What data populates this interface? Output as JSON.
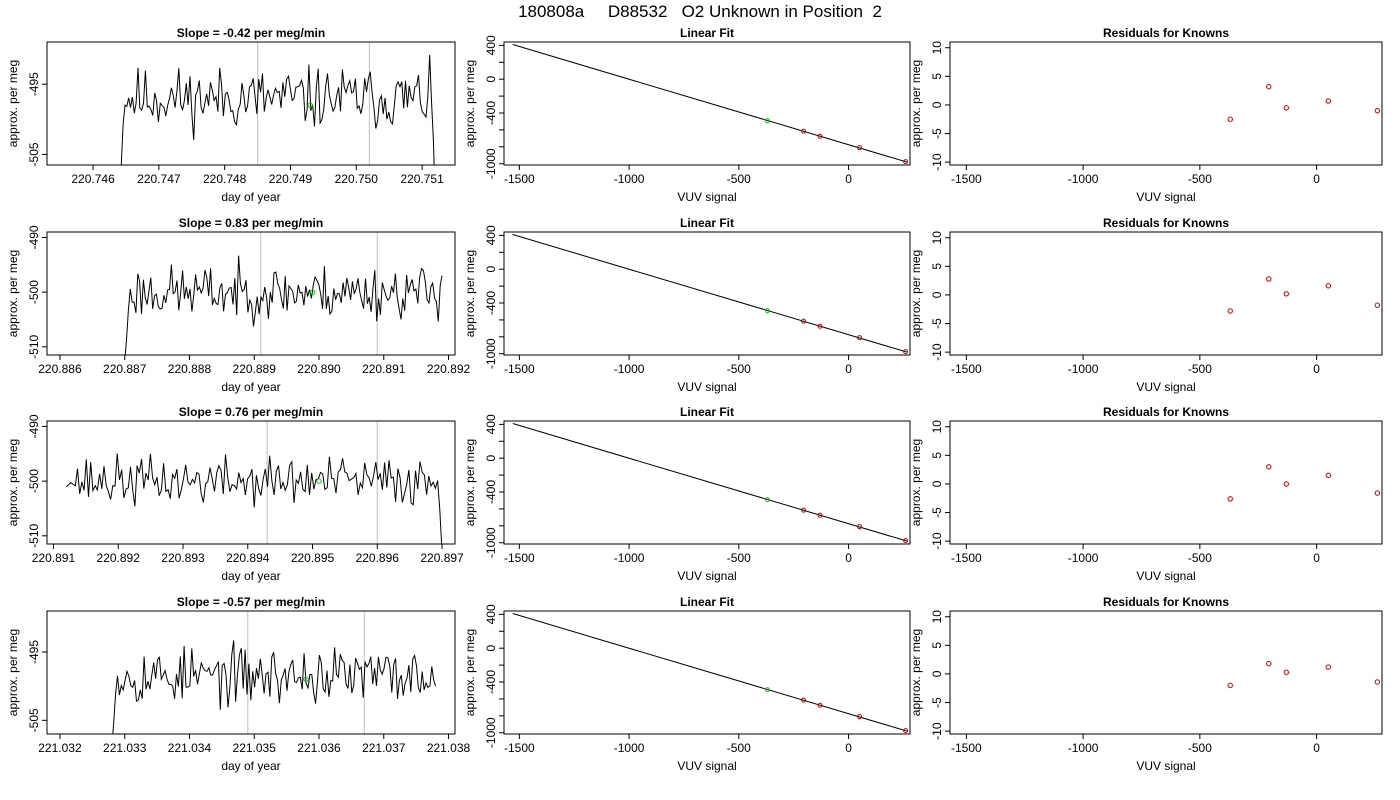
{
  "figure_title": "180808a     D88532   O2 Unknown in Position  2",
  "colors": {
    "trace": "#000000",
    "unknown_point": "#00cc00",
    "known_point": "#cc0000",
    "marker_line": "#c8c8c8",
    "fit_line": "#000000"
  },
  "chart_data": [
    {
      "row": 1,
      "type": "line",
      "title": "Slope =  -0.42  per meg/min",
      "xlabel": "day of year",
      "ylabel": "approx. per meg",
      "xlim": [
        220.7453,
        220.7515
      ],
      "ylim": [
        -506.5,
        -489
      ],
      "xticks": [
        "220.746",
        "220.747",
        "220.748",
        "220.749",
        "220.750",
        "220.751"
      ],
      "yticks": [
        "-495",
        "-505"
      ],
      "vlines": [
        220.7485,
        220.7502
      ],
      "trace_start": 220.7464,
      "trace_end": 220.7512,
      "baseline": -497,
      "wiggle": 2.7,
      "seed": 11,
      "start_value": -512,
      "end_value": -512,
      "unknown_point": {
        "x": 220.7493,
        "y": -498
      }
    },
    {
      "row": 1,
      "type": "scatter",
      "title": "Linear Fit",
      "xlabel": "VUV signal",
      "ylabel": "approx. per meg",
      "xlim": [
        -1570,
        280
      ],
      "ylim": [
        -1015,
        440
      ],
      "xticks": [
        "-1500",
        "-1000",
        "-500",
        "0"
      ],
      "yticks": [
        "400",
        "0",
        "-400",
        "-1000"
      ],
      "fit_line": {
        "x": [
          -1530,
          265
        ],
        "y": [
          410,
          -980
        ]
      },
      "unknown_point": {
        "x": -370,
        "y": -490
      },
      "known_points": {
        "x": [
          -205,
          -130,
          50,
          260
        ],
        "y": [
          -615,
          -675,
          -810,
          -975
        ]
      }
    },
    {
      "row": 1,
      "type": "scatter",
      "title": "Residuals for Knowns",
      "xlabel": "VUV signal",
      "ylabel": "approx. per meg",
      "xlim": [
        -1570,
        280
      ],
      "ylim": [
        -10.5,
        11
      ],
      "xticks": [
        "-1500",
        "-1000",
        "-500",
        "0"
      ],
      "yticks": [
        "10",
        "5",
        "0",
        "-5",
        "-10"
      ],
      "points": {
        "x": [
          -370,
          -205,
          -130,
          50,
          260
        ],
        "y": [
          -2.5,
          3.2,
          -0.5,
          0.7,
          -1.0
        ]
      }
    },
    {
      "row": 2,
      "type": "line",
      "title": "Slope =  0.83  per meg/min",
      "xlabel": "day of year",
      "ylabel": "approx. per meg",
      "xlim": [
        220.8858,
        220.8921
      ],
      "ylim": [
        -511.5,
        -489
      ],
      "xticks": [
        "220.886",
        "220.887",
        "220.888",
        "220.889",
        "220.890",
        "220.891",
        "220.892"
      ],
      "yticks": [
        "-490",
        "-500",
        "-510"
      ],
      "vlines": [
        220.8891,
        220.8909
      ],
      "trace_start": 220.887,
      "trace_end": 220.8919,
      "baseline": -500,
      "wiggle": 3.0,
      "seed": 23,
      "start_value": -513,
      "end_value": -497,
      "unknown_point": {
        "x": 220.8899,
        "y": -500
      }
    },
    {
      "row": 2,
      "type": "scatter",
      "title": "Linear Fit",
      "xlabel": "VUV signal",
      "ylabel": "approx. per meg",
      "xlim": [
        -1570,
        280
      ],
      "ylim": [
        -1015,
        440
      ],
      "xticks": [
        "-1500",
        "-1000",
        "-500",
        "0"
      ],
      "yticks": [
        "400",
        "0",
        "-400",
        "-1000"
      ],
      "fit_line": {
        "x": [
          -1530,
          265
        ],
        "y": [
          410,
          -980
        ]
      },
      "unknown_point": {
        "x": -370,
        "y": -490
      },
      "known_points": {
        "x": [
          -205,
          -130,
          50,
          260
        ],
        "y": [
          -615,
          -675,
          -810,
          -975
        ]
      }
    },
    {
      "row": 2,
      "type": "scatter",
      "title": "Residuals for Knowns",
      "xlabel": "VUV signal",
      "ylabel": "approx. per meg",
      "xlim": [
        -1570,
        280
      ],
      "ylim": [
        -10.5,
        11
      ],
      "xticks": [
        "-1500",
        "-1000",
        "-500",
        "0"
      ],
      "yticks": [
        "10",
        "5",
        "0",
        "-5",
        "-10"
      ],
      "points": {
        "x": [
          -370,
          -205,
          -130,
          50,
          260
        ],
        "y": [
          -2.8,
          2.8,
          0.2,
          1.6,
          -1.8
        ]
      }
    },
    {
      "row": 3,
      "type": "line",
      "title": "Slope =  0.76  per meg/min",
      "xlabel": "day of year",
      "ylabel": "approx. per meg",
      "xlim": [
        220.8909,
        220.8972
      ],
      "ylim": [
        -511.5,
        -489
      ],
      "xticks": [
        "220.891",
        "220.892",
        "220.893",
        "220.894",
        "220.895",
        "220.896",
        "220.897"
      ],
      "yticks": [
        "-490",
        "-500",
        "-510"
      ],
      "vlines": [
        220.8943,
        220.896
      ],
      "trace_start": 220.8912,
      "trace_end": 220.897,
      "baseline": -500,
      "wiggle": 2.8,
      "seed": 37,
      "start_value": -501,
      "end_value": -513,
      "unknown_point": {
        "x": 220.8951,
        "y": -500
      }
    },
    {
      "row": 3,
      "type": "scatter",
      "title": "Linear Fit",
      "xlabel": "VUV signal",
      "ylabel": "approx. per meg",
      "xlim": [
        -1570,
        280
      ],
      "ylim": [
        -1015,
        440
      ],
      "xticks": [
        "-1500",
        "-1000",
        "-500",
        "0"
      ],
      "yticks": [
        "400",
        "0",
        "-400",
        "-1000"
      ],
      "fit_line": {
        "x": [
          -1530,
          265
        ],
        "y": [
          410,
          -980
        ]
      },
      "unknown_point": {
        "x": -370,
        "y": -490
      },
      "known_points": {
        "x": [
          -205,
          -130,
          50,
          260
        ],
        "y": [
          -615,
          -675,
          -810,
          -975
        ]
      }
    },
    {
      "row": 3,
      "type": "scatter",
      "title": "Residuals for Knowns",
      "xlabel": "VUV signal",
      "ylabel": "approx. per meg",
      "xlim": [
        -1570,
        280
      ],
      "ylim": [
        -10.5,
        11
      ],
      "xticks": [
        "-1500",
        "-1000",
        "-500",
        "0"
      ],
      "yticks": [
        "10",
        "5",
        "0",
        "-5",
        "-10"
      ],
      "points": {
        "x": [
          -370,
          -205,
          -130,
          50,
          260
        ],
        "y": [
          -2.6,
          3.0,
          0.0,
          1.5,
          -1.6
        ]
      }
    },
    {
      "row": 4,
      "type": "line",
      "title": "Slope =  -0.57  per meg/min",
      "xlabel": "day of year",
      "ylabel": "approx. per meg",
      "xlim": [
        221.0318,
        221.0381
      ],
      "ylim": [
        -507,
        -489
      ],
      "xticks": [
        "221.032",
        "221.033",
        "221.034",
        "221.035",
        "221.036",
        "221.037",
        "221.038"
      ],
      "yticks": [
        "-495",
        "-505"
      ],
      "vlines": [
        221.0349,
        221.0367
      ],
      "trace_start": 221.0328,
      "trace_end": 221.0378,
      "baseline": -498.5,
      "wiggle": 2.6,
      "seed": 53,
      "start_value": -509,
      "end_value": -500,
      "unknown_point": {
        "x": 221.0358,
        "y": -499
      }
    },
    {
      "row": 4,
      "type": "scatter",
      "title": "Linear Fit",
      "xlabel": "VUV signal",
      "ylabel": "approx. per meg",
      "xlim": [
        -1570,
        280
      ],
      "ylim": [
        -1015,
        440
      ],
      "xticks": [
        "-1500",
        "-1000",
        "-500",
        "0"
      ],
      "yticks": [
        "400",
        "0",
        "-400",
        "-1000"
      ],
      "fit_line": {
        "x": [
          -1530,
          265
        ],
        "y": [
          410,
          -980
        ]
      },
      "unknown_point": {
        "x": -370,
        "y": -490
      },
      "known_points": {
        "x": [
          -205,
          -130,
          50,
          260
        ],
        "y": [
          -615,
          -675,
          -810,
          -975
        ]
      }
    },
    {
      "row": 4,
      "type": "scatter",
      "title": "Residuals for Knowns",
      "xlabel": "VUV signal",
      "ylabel": "approx. per meg",
      "xlim": [
        -1570,
        280
      ],
      "ylim": [
        -10.5,
        11
      ],
      "xticks": [
        "-1500",
        "-1000",
        "-500",
        "0"
      ],
      "yticks": [
        "10",
        "5",
        "0",
        "-5",
        "-10"
      ],
      "points": {
        "x": [
          -370,
          -205,
          -130,
          50,
          260
        ],
        "y": [
          -2.0,
          1.8,
          0.3,
          1.2,
          -1.4
        ]
      }
    }
  ]
}
